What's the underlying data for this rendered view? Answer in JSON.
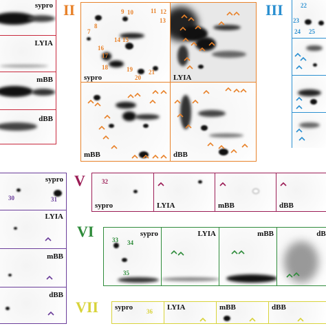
{
  "panels": {
    "I": {
      "labels": [
        "sypro",
        "LYIA",
        "mBB",
        "dBB"
      ],
      "color": "#c8283c"
    },
    "II": {
      "roman": "II",
      "color": "#e8822a",
      "labels": [
        "sypro",
        "LYIA",
        "mBB",
        "dBB"
      ],
      "spot_numbers": [
        "7",
        "8",
        "9",
        "10",
        "11",
        "12",
        "13",
        "14",
        "15",
        "16",
        "17",
        "18",
        "19",
        "20",
        "21"
      ]
    },
    "III": {
      "roman": "III",
      "color": "#2a8fd0",
      "spot_numbers": [
        "22",
        "23",
        "24",
        "25"
      ]
    },
    "IV": {
      "color": "#6a3d9a",
      "labels": [
        "sypro",
        "LYIA",
        "mBB",
        "dBB"
      ],
      "spot_numbers": [
        "30",
        "31"
      ]
    },
    "V": {
      "roman": "V",
      "color": "#9b1c55",
      "labels": [
        "sypro",
        "LYIA",
        "mBB",
        "dBB"
      ],
      "spot_numbers": [
        "32"
      ]
    },
    "VI": {
      "roman": "VI",
      "color": "#2e8b3a",
      "labels": [
        "sypro",
        "LYIA",
        "mBB",
        "dBB"
      ],
      "spot_numbers": [
        "33",
        "34",
        "35"
      ]
    },
    "VII": {
      "roman": "VII",
      "color": "#d8d33a",
      "labels": [
        "sypro",
        "LYIA",
        "mBB",
        "dBB"
      ],
      "spot_numbers": [
        "36"
      ]
    }
  }
}
